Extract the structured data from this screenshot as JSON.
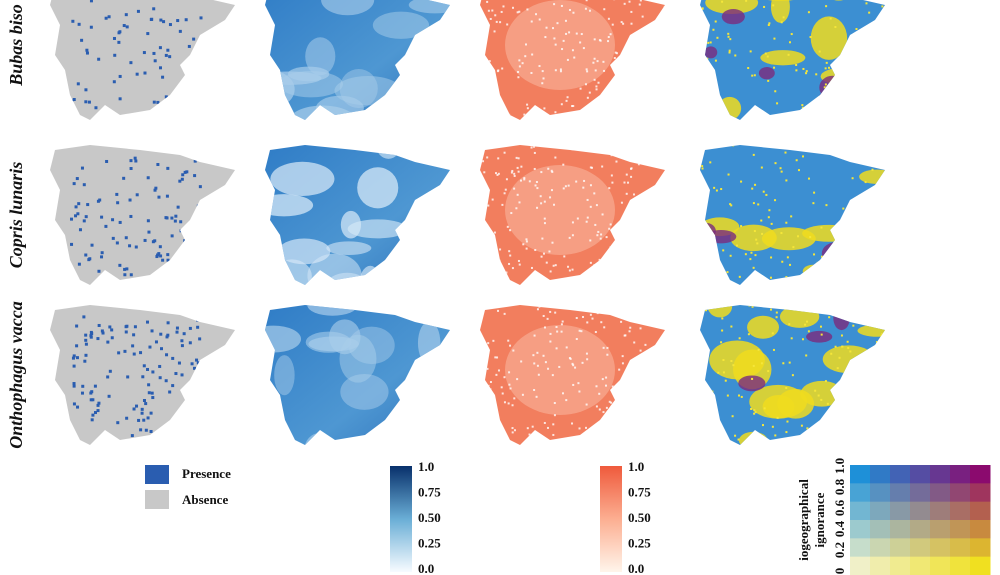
{
  "row_labels": [
    "Bubas biso",
    "Copris lunaris",
    "Onthophagus vacca"
  ],
  "legend_occurrence": {
    "items": [
      "Presence",
      "Absence"
    ]
  },
  "legend_blue": {
    "ticks": [
      "1.0",
      "0.75",
      "0.50",
      "0.25",
      "0.0"
    ]
  },
  "legend_orange": {
    "ticks": [
      "1.0",
      "0.75",
      "0.50",
      "0.25",
      "0.0"
    ]
  },
  "legend_bivariate": {
    "axis_label_lines": [
      "iogeographical",
      "ignorance"
    ],
    "ticks": [
      "0",
      "0.2",
      "0.4",
      "0.6",
      "0.8",
      "1.0"
    ]
  }
}
